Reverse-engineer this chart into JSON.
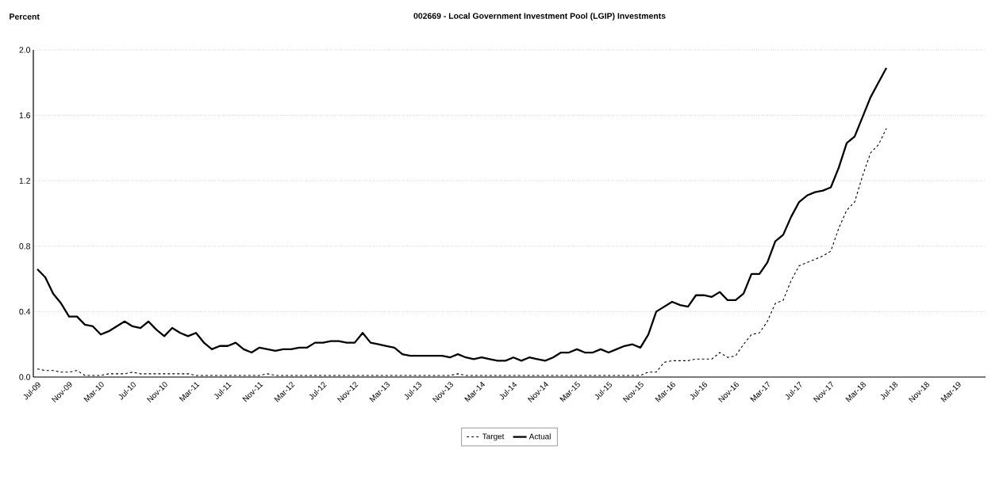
{
  "chart_data": {
    "type": "line",
    "title": "002669 - Local Government Investment Pool (LGIP) Investments",
    "ylabel": "Percent",
    "categories": [
      "Jul-09",
      null,
      null,
      null,
      "Nov-09",
      null,
      null,
      null,
      "Mar-10",
      null,
      null,
      null,
      "Jul-10",
      null,
      null,
      null,
      "Nov-10",
      null,
      null,
      null,
      "Mar-11",
      null,
      null,
      null,
      "Jul-11",
      null,
      null,
      null,
      "Nov-11",
      null,
      null,
      null,
      "Mar-12",
      null,
      null,
      null,
      "Jul-12",
      null,
      null,
      null,
      "Nov-12",
      null,
      null,
      null,
      "Mar-13",
      null,
      null,
      null,
      "Jul-13",
      null,
      null,
      null,
      "Nov-13",
      null,
      null,
      null,
      "Mar-14",
      null,
      null,
      null,
      "Jul-14",
      null,
      null,
      null,
      "Nov-14",
      null,
      null,
      null,
      "Mar-15",
      null,
      null,
      null,
      "Jul-15",
      null,
      null,
      null,
      "Nov-15",
      null,
      null,
      null,
      "Mar-16",
      null,
      null,
      null,
      "Jul-16",
      null,
      null,
      null,
      "Nov-16",
      null,
      null,
      null,
      "Mar-17",
      null,
      null,
      null,
      "Jul-17",
      null,
      null,
      null,
      "Nov-17",
      null,
      null,
      null,
      "Mar-18",
      null,
      null,
      null,
      "Jul-18",
      null,
      null,
      null,
      "Nov-18",
      null,
      null,
      null,
      "Mar-19",
      null,
      null,
      null
    ],
    "series": [
      {
        "name": "Target",
        "color": "#000000",
        "line_style": "dashed",
        "values": [
          0.05,
          0.04,
          0.04,
          0.03,
          0.03,
          0.04,
          0.01,
          0.01,
          0.01,
          0.02,
          0.02,
          0.02,
          0.03,
          0.02,
          0.02,
          0.02,
          0.02,
          0.02,
          0.02,
          0.02,
          0.01,
          0.01,
          0.01,
          0.01,
          0.01,
          0.01,
          0.01,
          0.01,
          0.01,
          0.02,
          0.01,
          0.01,
          0.01,
          0.01,
          0.01,
          0.01,
          0.01,
          0.01,
          0.01,
          0.01,
          0.01,
          0.01,
          0.01,
          0.01,
          0.01,
          0.01,
          0.01,
          0.01,
          0.01,
          0.01,
          0.01,
          0.01,
          0.01,
          0.02,
          0.01,
          0.01,
          0.01,
          0.01,
          0.01,
          0.01,
          0.01,
          0.01,
          0.01,
          0.01,
          0.01,
          0.01,
          0.01,
          0.01,
          0.01,
          0.01,
          0.01,
          0.01,
          0.01,
          0.01,
          0.01,
          0.01,
          0.01,
          0.03,
          0.03,
          0.09,
          0.1,
          0.1,
          0.1,
          0.11,
          0.11,
          0.11,
          0.15,
          0.12,
          0.13,
          0.2,
          0.26,
          0.27,
          0.34,
          0.45,
          0.47,
          0.59,
          0.68,
          0.7,
          0.72,
          0.74,
          0.77,
          0.91,
          1.02,
          1.07,
          1.23,
          1.37,
          1.42,
          1.52,
          null,
          null,
          null,
          null,
          null,
          null,
          null,
          null,
          null,
          null,
          null,
          null
        ]
      },
      {
        "name": "Actual",
        "color": "#000000",
        "line_style": "solid",
        "values": [
          0.66,
          0.61,
          0.51,
          0.45,
          0.37,
          0.37,
          0.32,
          0.31,
          0.26,
          0.28,
          0.31,
          0.34,
          0.31,
          0.3,
          0.34,
          0.29,
          0.25,
          0.3,
          0.27,
          0.25,
          0.27,
          0.21,
          0.17,
          0.19,
          0.19,
          0.21,
          0.17,
          0.15,
          0.18,
          0.17,
          0.16,
          0.17,
          0.17,
          0.18,
          0.18,
          0.21,
          0.21,
          0.22,
          0.22,
          0.21,
          0.21,
          0.27,
          0.21,
          0.2,
          0.19,
          0.18,
          0.14,
          0.13,
          0.13,
          0.13,
          0.13,
          0.13,
          0.12,
          0.14,
          0.12,
          0.11,
          0.12,
          0.11,
          0.1,
          0.1,
          0.12,
          0.1,
          0.12,
          0.11,
          0.1,
          0.12,
          0.15,
          0.15,
          0.17,
          0.15,
          0.15,
          0.17,
          0.15,
          0.17,
          0.19,
          0.2,
          0.18,
          0.26,
          0.4,
          0.43,
          0.46,
          0.44,
          0.43,
          0.5,
          0.5,
          0.49,
          0.52,
          0.47,
          0.47,
          0.51,
          0.63,
          0.63,
          0.7,
          0.83,
          0.87,
          0.98,
          1.07,
          1.11,
          1.13,
          1.14,
          1.16,
          1.28,
          1.43,
          1.47,
          1.59,
          1.71,
          1.8,
          1.89,
          null,
          null,
          null,
          null,
          null,
          null,
          null,
          null,
          null,
          null,
          null,
          null
        ]
      }
    ],
    "ylim": [
      0,
      2
    ],
    "yticks": [
      {
        "value": 0,
        "label": "0.0"
      },
      {
        "value": 0.4,
        "label": "0.4"
      },
      {
        "value": 0.8,
        "label": "0.8"
      },
      {
        "value": 1.2,
        "label": "1.2"
      },
      {
        "value": 1.6,
        "label": "1.6"
      },
      {
        "value": 2,
        "label": "2.0"
      }
    ],
    "grid": "y",
    "legend": "bottom",
    "marker": "none"
  }
}
